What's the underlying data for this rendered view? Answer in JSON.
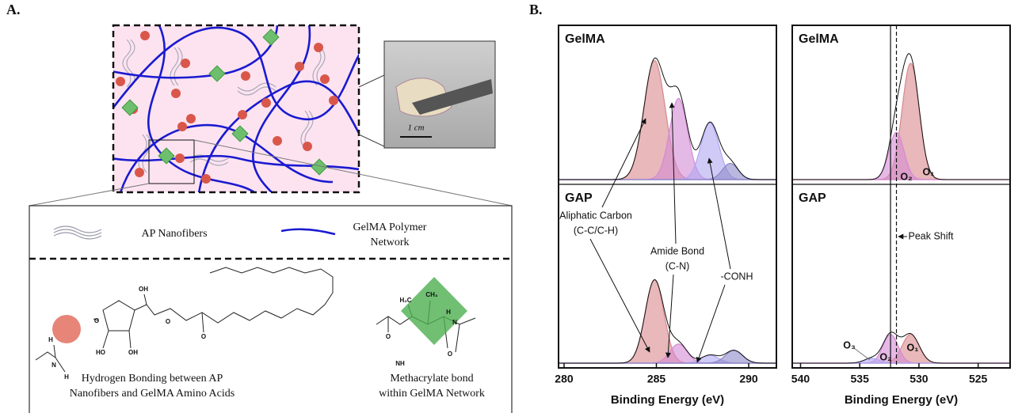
{
  "panel_labels": [
    "A.",
    "B."
  ],
  "panel_a": {
    "scale_bar": "1 cm",
    "legend": [
      [
        "AP Nanofibers"
      ],
      [
        "GelMA Polymer",
        "Network"
      ]
    ],
    "captions": [
      [
        "Hydrogen Bonding between AP",
        "Nanofibers and GelMA Amino Acids"
      ],
      [
        "Methacrylate bond",
        "within GelMA Network"
      ]
    ],
    "atom_labels": [
      "O",
      "OH",
      "O",
      "O",
      "HO",
      "OH",
      "H",
      "N",
      "H",
      "CH₃",
      "H₂C",
      "O",
      "NH",
      "H",
      "N",
      "O"
    ]
  },
  "chart_data": [
    {
      "type": "area",
      "xlabel": "Binding Energy (eV)",
      "xlim": [
        279.7,
        291.5
      ],
      "xticks": [
        280,
        285,
        290
      ],
      "ylim": [
        0,
        100
      ],
      "panels": [
        {
          "label": "GelMA",
          "series": [
            {
              "color": "#d9888c",
              "center": 284.9,
              "height": 88,
              "fwhm": 1.35
            },
            {
              "color": "#d48ad4",
              "center": 286.2,
              "height": 60,
              "fwhm": 1.15
            },
            {
              "color": "#b0a6f2",
              "center": 287.9,
              "height": 42,
              "fwhm": 1.15
            },
            {
              "color": "#8c88c8",
              "center": 289.0,
              "height": 12,
              "fwhm": 1.0
            }
          ]
        },
        {
          "label": "GAP",
          "series": [
            {
              "color": "#d9888c",
              "center": 284.9,
              "height": 52,
              "fwhm": 1.2
            },
            {
              "color": "#d48ad4",
              "center": 286.2,
              "height": 12,
              "fwhm": 1.1
            },
            {
              "color": "#b0a6f2",
              "center": 287.9,
              "height": 5,
              "fwhm": 1.1
            },
            {
              "color": "#8c88c8",
              "center": 289.2,
              "height": 8,
              "fwhm": 1.1
            }
          ]
        }
      ],
      "annotations": [
        "Aliphatic Carbon",
        "(C-C/C-H)",
        "Amide Bond",
        "(C-N)",
        "-CONH"
      ]
    },
    {
      "type": "area",
      "xlabel": "Binding Energy (eV)",
      "xlim": [
        540.7,
        522.3
      ],
      "xticks": [
        540,
        535,
        530,
        525
      ],
      "ylim": [
        0,
        100
      ],
      "panels": [
        {
          "label": "GelMA",
          "series": [
            {
              "color": "#d9888c",
              "center": 530.7,
              "height": 86,
              "fwhm": 1.7
            },
            {
              "color": "#d48ad4",
              "center": 531.9,
              "height": 35,
              "fwhm": 1.5
            }
          ]
        },
        {
          "label": "GAP",
          "series": [
            {
              "color": "#d9888c",
              "center": 530.7,
              "height": 18,
              "fwhm": 1.7
            },
            {
              "color": "#d48ad4",
              "center": 532.4,
              "height": 18,
              "fwhm": 1.5
            },
            {
              "color": "#b0a6f2",
              "center": 534.0,
              "height": 3,
              "fwhm": 1.5
            }
          ]
        }
      ],
      "reference_lines": [
        {
          "value": 532.4,
          "style": "solid"
        },
        {
          "value": 531.9,
          "style": "dashed"
        }
      ],
      "annotations": [
        "Peak Shift",
        "O₂",
        "O₁",
        "O₃",
        "O₂",
        "O₁"
      ]
    }
  ]
}
